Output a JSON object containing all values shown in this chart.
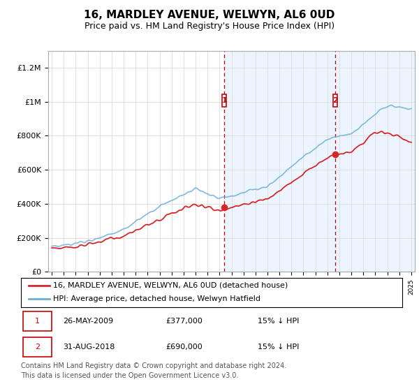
{
  "title": "16, MARDLEY AVENUE, WELWYN, AL6 0UD",
  "subtitle": "Price paid vs. HM Land Registry's House Price Index (HPI)",
  "ylabel_ticks": [
    "£0",
    "£200K",
    "£400K",
    "£600K",
    "£800K",
    "£1M",
    "£1.2M"
  ],
  "ylim": [
    0,
    1300000
  ],
  "yticks": [
    0,
    200000,
    400000,
    600000,
    800000,
    1000000,
    1200000
  ],
  "hpi_color": "#6baed6",
  "price_color": "#d62728",
  "marker1_year": 2009.4,
  "marker1_price": 377000,
  "marker2_year": 2018.67,
  "marker2_price": 690000,
  "shade_color": "#ddeeff",
  "shade_alpha": 0.55,
  "legend_line1": "16, MARDLEY AVENUE, WELWYN, AL6 0UD (detached house)",
  "legend_line2": "HPI: Average price, detached house, Welwyn Hatfield",
  "table_row1": [
    "1",
    "26-MAY-2009",
    "£377,000",
    "15% ↓ HPI"
  ],
  "table_row2": [
    "2",
    "31-AUG-2018",
    "£690,000",
    "15% ↓ HPI"
  ],
  "footnote1": "Contains HM Land Registry data © Crown copyright and database right 2024.",
  "footnote2": "This data is licensed under the Open Government Licence v3.0.",
  "grid_color": "#dddddd",
  "spine_color": "#aaaaaa",
  "box_color_r": "#cc0000",
  "title_fs": 11,
  "subtitle_fs": 9,
  "tick_fs": 8,
  "legend_fs": 8,
  "table_fs": 8,
  "foot_fs": 7
}
